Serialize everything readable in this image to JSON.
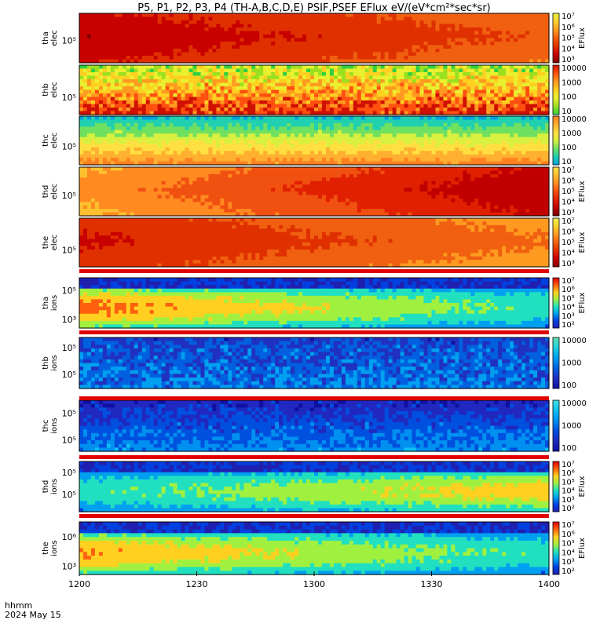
{
  "title": "P5, P1, P2, P3, P4 (TH-A,B,C,D,E) PSIF,PSEF EFlux eV/(eV*cm²*sec*sr)",
  "x_axis": {
    "ticks": [
      "1200",
      "1230",
      "1300",
      "1330",
      "1400"
    ],
    "label_line1": "hhmm",
    "label_line2": "2024 May 15"
  },
  "chart_data": [
    {
      "type": "heatmap",
      "probe": "tha",
      "species": "elec",
      "ylabel": [
        "tha",
        "elec"
      ],
      "ytick": "10⁵",
      "ytick_frac": 0.55,
      "colorbar_label": "EFlux",
      "colorbar_ticks": [
        "10⁷",
        "10⁶",
        "10⁵",
        "10⁴",
        "10³"
      ],
      "colors": [
        "#7a0000",
        "#c80000",
        "#e03000",
        "#f06010",
        "#ff9a20",
        "#ffd030",
        "#e4f040"
      ],
      "pattern": "smooth_e",
      "intensity_start": 0.85,
      "intensity_end": 0.55
    },
    {
      "type": "heatmap",
      "probe": "thb",
      "species": "elec",
      "ylabel": [
        "thb",
        "elec"
      ],
      "ytick": "10⁵",
      "ytick_frac": 0.65,
      "colorbar_label": "",
      "colorbar_ticks": [
        "10000",
        "1000",
        "100",
        "10"
      ],
      "colors": [
        "#30d040",
        "#9ae020",
        "#e8f030",
        "#ffd020",
        "#ff9a20",
        "#ff5010",
        "#d01000"
      ],
      "pattern": "noisy_e",
      "intensity_start": 0.5,
      "intensity_end": 0.5
    },
    {
      "type": "heatmap",
      "probe": "thc",
      "species": "elec",
      "ylabel": [
        "thc",
        "elec"
      ],
      "ytick": "10⁵",
      "ytick_frac": 0.62,
      "colorbar_label": "",
      "colorbar_ticks": [
        "10000",
        "1000",
        "100",
        "10"
      ],
      "colors": [
        "#00a0e0",
        "#20d0b0",
        "#70e060",
        "#d8f040",
        "#ffe040",
        "#ffb030",
        "#ff8020"
      ],
      "pattern": "banded_c",
      "intensity_start": 0.5,
      "intensity_end": 0.5
    },
    {
      "type": "heatmap",
      "probe": "thd",
      "species": "elec",
      "ylabel": [
        "thd",
        "elec"
      ],
      "ytick": "10⁵",
      "ytick_frac": 0.58,
      "colorbar_label": "EFlux",
      "colorbar_ticks": [
        "10⁷",
        "10⁶",
        "10⁵",
        "10⁴",
        "10³"
      ],
      "colors": [
        "#7a0000",
        "#c00000",
        "#e02000",
        "#f05010",
        "#ff8a20",
        "#ffc030",
        "#ffe040"
      ],
      "pattern": "smooth_d",
      "intensity_start": 0.35,
      "intensity_end": 0.85
    },
    {
      "type": "heatmap",
      "probe": "the",
      "species": "elec",
      "ylabel": [
        "the",
        "elec"
      ],
      "ytick": "10⁵",
      "ytick_frac": 0.65,
      "colorbar_label": "EFlux",
      "colorbar_ticks": [
        "10⁷",
        "10⁶",
        "10⁵",
        "10⁴",
        "10³"
      ],
      "colors": [
        "#8a0000",
        "#c80000",
        "#e03000",
        "#f06010",
        "#ff9a20",
        "#ffd030",
        "#f0f050"
      ],
      "pattern": "smooth_e",
      "intensity_start": 0.75,
      "intensity_end": 0.45
    },
    {
      "type": "heatmap",
      "probe": "tha",
      "species": "ions",
      "ylabel": [
        "tha",
        "ions"
      ],
      "ytick": "10⁵",
      "ytick_frac": 0.25,
      "ytick2": "10³",
      "ytick2_frac": 0.83,
      "colorbar_label": "EFlux",
      "colorbar_ticks": [
        "10⁷",
        "10⁶",
        "10⁵",
        "10⁴",
        "10³",
        "10²"
      ],
      "colors": [
        "#2020b0",
        "#0040e0",
        "#00a0f0",
        "#20e0c0",
        "#a0f040",
        "#ffd020",
        "#ff6010",
        "#e00000"
      ],
      "pattern": "ions",
      "intensity_start": 0.8,
      "intensity_end": 0.45
    },
    {
      "type": "heatmap",
      "probe": "thb",
      "species": "ions",
      "ylabel": [
        "thb",
        "ions"
      ],
      "ytick": "10⁵",
      "ytick_frac": 0.2,
      "ytick2": "10⁵",
      "ytick2_frac": 0.72,
      "colorbar_label": "",
      "colorbar_ticks": [
        "10000",
        "1000",
        "100"
      ],
      "colors": [
        "#1010a0",
        "#2030c0",
        "#0060e0",
        "#00a0f0",
        "#20d0e0",
        "#60e0b0"
      ],
      "pattern": "noisy_i",
      "intensity_start": 0.5,
      "intensity_end": 0.5
    },
    {
      "type": "heatmap",
      "probe": "thc",
      "species": "ions",
      "ylabel": [
        "thc",
        "ions"
      ],
      "ytick": "10⁵",
      "ytick_frac": 0.25,
      "ytick2": "10⁵",
      "ytick2_frac": 0.78,
      "colorbar_label": "",
      "colorbar_ticks": [
        "10000",
        "1000",
        "100"
      ],
      "colors": [
        "#1010a0",
        "#2028c0",
        "#0050e0",
        "#0090f0",
        "#10c0f0",
        "#40e0e0"
      ],
      "pattern": "noisy_i2",
      "intensity_start": 0.5,
      "intensity_end": 0.5
    },
    {
      "type": "heatmap",
      "probe": "thd",
      "species": "ions",
      "ylabel": [
        "thd",
        "ions"
      ],
      "ytick": "10⁵",
      "ytick_frac": 0.22,
      "ytick2": "10⁵",
      "ytick2_frac": 0.66,
      "colorbar_label": "EFlux",
      "colorbar_ticks": [
        "10⁷",
        "10⁶",
        "10⁵",
        "10⁴",
        "10³",
        "10²"
      ],
      "colors": [
        "#2020b0",
        "#0040e0",
        "#00a0f0",
        "#20e0c0",
        "#a0f040",
        "#ffd020",
        "#ff6010",
        "#e00000"
      ],
      "pattern": "ions_d",
      "intensity_start": 0.45,
      "intensity_end": 0.7
    },
    {
      "type": "heatmap",
      "probe": "the",
      "species": "ions",
      "ylabel": [
        "the",
        "ions"
      ],
      "ytick": "10⁶",
      "ytick_frac": 0.28,
      "ytick2": "10³",
      "ytick2_frac": 0.84,
      "colorbar_label": "EFlux",
      "colorbar_ticks": [
        "10⁷",
        "10⁶",
        "10⁵",
        "10⁴",
        "10³",
        "10²"
      ],
      "colors": [
        "#2020b0",
        "#0040e0",
        "#00a0f0",
        "#20e0c0",
        "#a0f040",
        "#ffd020",
        "#ff6010",
        "#e00000"
      ],
      "pattern": "ions",
      "intensity_start": 0.75,
      "intensity_end": 0.45
    }
  ],
  "colorbar_gradient": [
    "#ffffff",
    "#ff0000",
    "#ff8000",
    "#ffff00",
    "#00ff80",
    "#00c0ff",
    "#0000ff",
    "#200060"
  ]
}
